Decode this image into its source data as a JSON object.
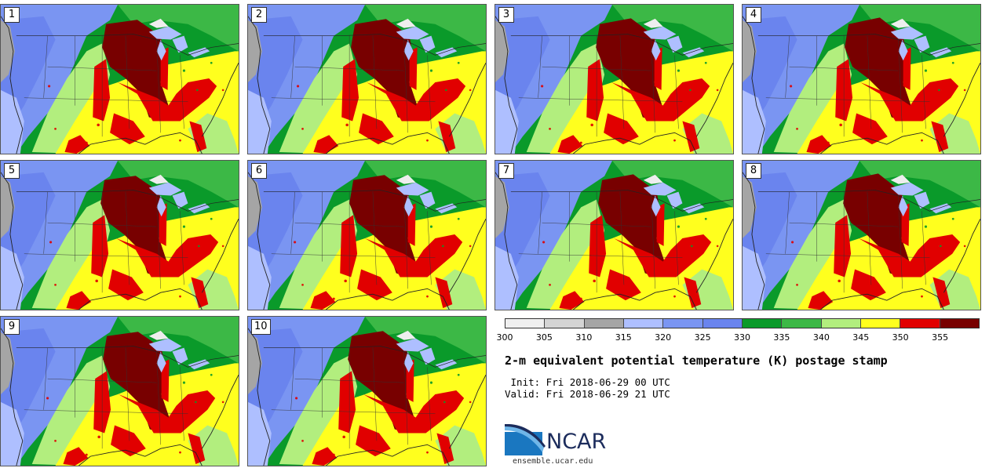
{
  "title": "2-m equivalent potential temperature (K) postage stamp",
  "init_line": " Init: Fri 2018-06-29 00 UTC",
  "valid_line": "Valid: Fri 2018-06-29 21 UTC",
  "members": [
    "1",
    "2",
    "3",
    "4",
    "5",
    "6",
    "7",
    "8",
    "9",
    "10"
  ],
  "colorbar": {
    "ticks": [
      "300",
      "305",
      "310",
      "315",
      "320",
      "325",
      "330",
      "335",
      "340",
      "345",
      "350",
      "355"
    ],
    "colors": [
      "#efefef",
      "#d4d4d4",
      "#a5a5a5",
      "#aebfff",
      "#7a95f2",
      "#6a84ee",
      "#0a9a2a",
      "#3cb846",
      "#b2ee7e",
      "#ffff1e",
      "#e10000",
      "#780000"
    ]
  },
  "logo": {
    "name": "NCAR",
    "url": "ensemble.ucar.edu"
  }
}
